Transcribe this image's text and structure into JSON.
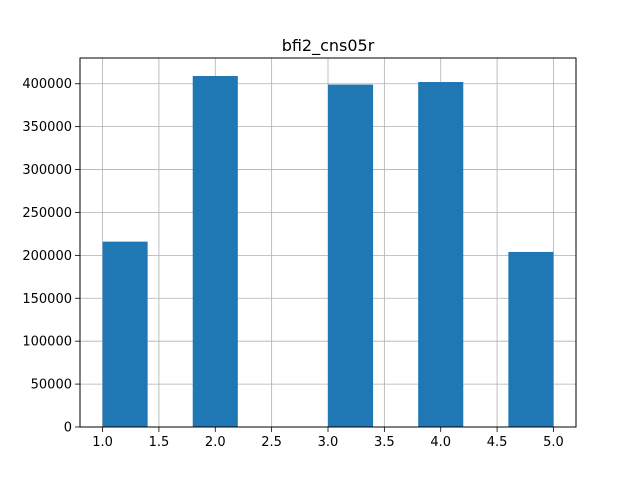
{
  "chart_data": {
    "type": "bar",
    "title": "bfi2_cns05r",
    "xlabel": "",
    "ylabel": "",
    "xlim": [
      0.8,
      5.2
    ],
    "ylim": [
      0,
      430000
    ],
    "grid": true,
    "x_ticks": [
      "1.0",
      "1.5",
      "2.0",
      "2.5",
      "3.0",
      "3.5",
      "4.0",
      "4.5",
      "5.0"
    ],
    "y_ticks": [
      "0",
      "50000",
      "100000",
      "150000",
      "200000",
      "250000",
      "300000",
      "350000",
      "400000"
    ],
    "bins": [
      {
        "start": 1.0,
        "end": 1.4,
        "value": 216000
      },
      {
        "start": 1.4,
        "end": 1.8,
        "value": 0
      },
      {
        "start": 1.8,
        "end": 2.2,
        "value": 409000
      },
      {
        "start": 2.2,
        "end": 2.6,
        "value": 0
      },
      {
        "start": 2.6,
        "end": 3.0,
        "value": 0
      },
      {
        "start": 3.0,
        "end": 3.4,
        "value": 399000
      },
      {
        "start": 3.4,
        "end": 3.8,
        "value": 0
      },
      {
        "start": 3.8,
        "end": 4.2,
        "value": 402000
      },
      {
        "start": 4.2,
        "end": 4.6,
        "value": 0
      },
      {
        "start": 4.6,
        "end": 5.0,
        "value": 204000
      }
    ],
    "colors": {
      "bar": "#1f77b4",
      "grid": "#b0b0b0",
      "axis": "#000000"
    }
  }
}
